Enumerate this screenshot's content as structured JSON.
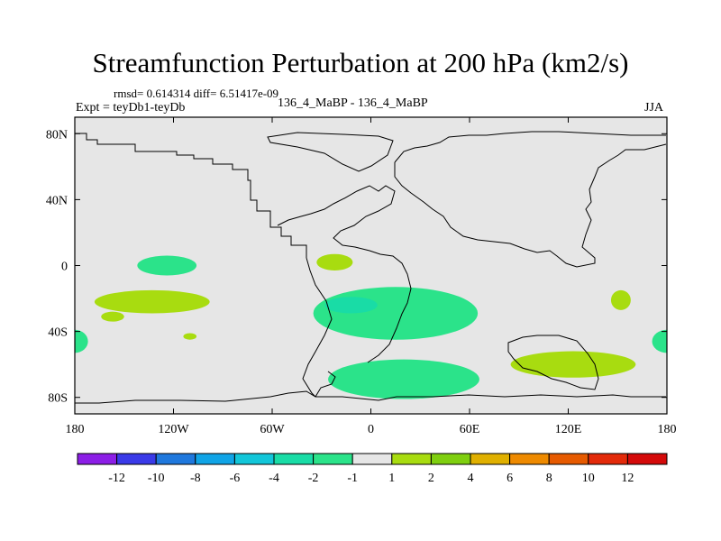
{
  "chart_data": {
    "type": "contour-map",
    "title": "Streamfunction Perturbation at 200 hPa (km2/s)",
    "stats": "rmsd= 0.614314 diff= 6.51417e-09",
    "experiment": "Expt = teyDb1-teyDb",
    "cases": "136_4_MaBP - 136_4_MaBP",
    "season": "JJA",
    "lon_range": [
      -180,
      180
    ],
    "lat_range": [
      -90,
      90
    ],
    "x_ticks": [
      {
        "lon": -180,
        "label": "180"
      },
      {
        "lon": -120,
        "label": "120W"
      },
      {
        "lon": -60,
        "label": "60W"
      },
      {
        "lon": 0,
        "label": "0"
      },
      {
        "lon": 60,
        "label": "60E"
      },
      {
        "lon": 120,
        "label": "120E"
      },
      {
        "lon": 180,
        "label": "180"
      }
    ],
    "y_ticks": [
      {
        "lat": 80,
        "label": "80N"
      },
      {
        "lat": 40,
        "label": "40N"
      },
      {
        "lat": 0,
        "label": "0"
      },
      {
        "lat": -40,
        "label": "40S"
      },
      {
        "lat": -80,
        "label": "80S"
      }
    ],
    "colorbar": {
      "levels": [
        -12,
        -10,
        -8,
        -6,
        -4,
        -2,
        -1,
        1,
        2,
        4,
        6,
        8,
        10,
        12
      ],
      "labels": [
        "-12",
        "-10",
        "-8",
        "-6",
        "-4",
        "-2",
        "-1",
        "1",
        "2",
        "4",
        "6",
        "8",
        "10",
        "12"
      ],
      "colors": [
        "#8c1ee6",
        "#3a3ae8",
        "#1f78dd",
        "#10a4e6",
        "#12c6d9",
        "#19dca6",
        "#2be38a",
        "#e6e6e6",
        "#a8dc10",
        "#7fcf0f",
        "#e0b000",
        "#ee8a00",
        "#e65a00",
        "#e32a0a",
        "#d40a0a"
      ]
    },
    "regions": [
      {
        "name": "pos-1-2-south-pacific",
        "lon": -133,
        "lat": -22,
        "rlon": 35,
        "rlat": 7,
        "level_index": 8
      },
      {
        "name": "pos-1-2-small-sw-pacific",
        "lon": -157,
        "lat": -31,
        "rlon": 7,
        "rlat": 3,
        "level_index": 8
      },
      {
        "name": "pos-1-2-tiny-pacific",
        "lon": -110,
        "lat": -43,
        "rlon": 4,
        "rlat": 2,
        "level_index": 8
      },
      {
        "name": "pos-1-2-atlantic-north",
        "lon": -22,
        "lat": 2,
        "rlon": 11,
        "rlat": 5,
        "level_index": 8
      },
      {
        "name": "pos-1-2-west-pacific",
        "lon": 152,
        "lat": -21,
        "rlon": 6,
        "rlat": 6,
        "level_index": 8
      },
      {
        "name": "pos-1-2-indian-ocean",
        "lon": 123,
        "lat": -60,
        "rlon": 38,
        "rlat": 8,
        "level_index": 8
      },
      {
        "name": "neg-2-1-central-pacific",
        "lon": -124,
        "lat": 0,
        "rlon": 18,
        "rlat": 6,
        "level_index": 6
      },
      {
        "name": "neg-2-1-atlantic",
        "lon": 15,
        "lat": -29,
        "rlon": 50,
        "rlat": 16,
        "level_index": 6
      },
      {
        "name": "neg-4-2-atlantic-core",
        "lon": -12,
        "lat": -24,
        "rlon": 16,
        "rlat": 5,
        "level_index": 5
      },
      {
        "name": "neg-2-1-southern-ocean",
        "lon": 20,
        "lat": -69,
        "rlon": 46,
        "rlat": 12,
        "level_index": 6
      },
      {
        "name": "neg-2-1-west-edge",
        "lon": -180,
        "lat": -46,
        "rlon": 8,
        "rlat": 7,
        "level_index": 6
      },
      {
        "name": "neg-2-1-east-edge",
        "lon": 180,
        "lat": -46,
        "rlon": 9,
        "rlat": 7,
        "level_index": 6
      }
    ]
  }
}
